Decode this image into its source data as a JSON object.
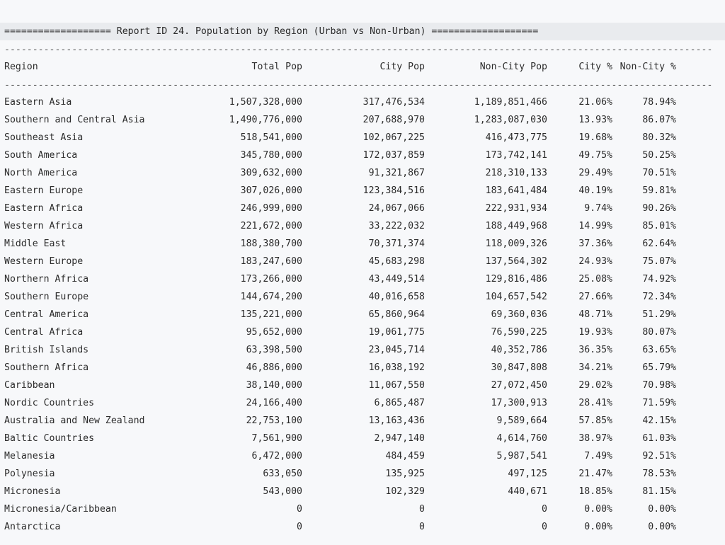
{
  "report": {
    "title_line": "=================== Report ID 24. Population by Region (Urban vs Non-Urban) ===================",
    "separator": "-----------------------------------------------------------------------------------------------------------------------------------"
  },
  "columns": {
    "region": "Region",
    "total": "Total Pop",
    "city": "City Pop",
    "noncity": "Non-City Pop",
    "city_pct": "City %",
    "noncity_pct": "Non-City %"
  },
  "rows": [
    {
      "region": "Eastern Asia",
      "total": "1,507,328,000",
      "city": "317,476,534",
      "noncity": "1,189,851,466",
      "city_pct": "21.06%",
      "noncity_pct": "78.94%"
    },
    {
      "region": "Southern and Central Asia",
      "total": "1,490,776,000",
      "city": "207,688,970",
      "noncity": "1,283,087,030",
      "city_pct": "13.93%",
      "noncity_pct": "86.07%"
    },
    {
      "region": "Southeast Asia",
      "total": "518,541,000",
      "city": "102,067,225",
      "noncity": "416,473,775",
      "city_pct": "19.68%",
      "noncity_pct": "80.32%"
    },
    {
      "region": "South America",
      "total": "345,780,000",
      "city": "172,037,859",
      "noncity": "173,742,141",
      "city_pct": "49.75%",
      "noncity_pct": "50.25%"
    },
    {
      "region": "North America",
      "total": "309,632,000",
      "city": "91,321,867",
      "noncity": "218,310,133",
      "city_pct": "29.49%",
      "noncity_pct": "70.51%"
    },
    {
      "region": "Eastern Europe",
      "total": "307,026,000",
      "city": "123,384,516",
      "noncity": "183,641,484",
      "city_pct": "40.19%",
      "noncity_pct": "59.81%"
    },
    {
      "region": "Eastern Africa",
      "total": "246,999,000",
      "city": "24,067,066",
      "noncity": "222,931,934",
      "city_pct": "9.74%",
      "noncity_pct": "90.26%"
    },
    {
      "region": "Western Africa",
      "total": "221,672,000",
      "city": "33,222,032",
      "noncity": "188,449,968",
      "city_pct": "14.99%",
      "noncity_pct": "85.01%"
    },
    {
      "region": "Middle East",
      "total": "188,380,700",
      "city": "70,371,374",
      "noncity": "118,009,326",
      "city_pct": "37.36%",
      "noncity_pct": "62.64%"
    },
    {
      "region": "Western Europe",
      "total": "183,247,600",
      "city": "45,683,298",
      "noncity": "137,564,302",
      "city_pct": "24.93%",
      "noncity_pct": "75.07%"
    },
    {
      "region": "Northern Africa",
      "total": "173,266,000",
      "city": "43,449,514",
      "noncity": "129,816,486",
      "city_pct": "25.08%",
      "noncity_pct": "74.92%"
    },
    {
      "region": "Southern Europe",
      "total": "144,674,200",
      "city": "40,016,658",
      "noncity": "104,657,542",
      "city_pct": "27.66%",
      "noncity_pct": "72.34%"
    },
    {
      "region": "Central America",
      "total": "135,221,000",
      "city": "65,860,964",
      "noncity": "69,360,036",
      "city_pct": "48.71%",
      "noncity_pct": "51.29%"
    },
    {
      "region": "Central Africa",
      "total": "95,652,000",
      "city": "19,061,775",
      "noncity": "76,590,225",
      "city_pct": "19.93%",
      "noncity_pct": "80.07%"
    },
    {
      "region": "British Islands",
      "total": "63,398,500",
      "city": "23,045,714",
      "noncity": "40,352,786",
      "city_pct": "36.35%",
      "noncity_pct": "63.65%"
    },
    {
      "region": "Southern Africa",
      "total": "46,886,000",
      "city": "16,038,192",
      "noncity": "30,847,808",
      "city_pct": "34.21%",
      "noncity_pct": "65.79%"
    },
    {
      "region": "Caribbean",
      "total": "38,140,000",
      "city": "11,067,550",
      "noncity": "27,072,450",
      "city_pct": "29.02%",
      "noncity_pct": "70.98%"
    },
    {
      "region": "Nordic Countries",
      "total": "24,166,400",
      "city": "6,865,487",
      "noncity": "17,300,913",
      "city_pct": "28.41%",
      "noncity_pct": "71.59%"
    },
    {
      "region": "Australia and New Zealand",
      "total": "22,753,100",
      "city": "13,163,436",
      "noncity": "9,589,664",
      "city_pct": "57.85%",
      "noncity_pct": "42.15%"
    },
    {
      "region": "Baltic Countries",
      "total": "7,561,900",
      "city": "2,947,140",
      "noncity": "4,614,760",
      "city_pct": "38.97%",
      "noncity_pct": "61.03%"
    },
    {
      "region": "Melanesia",
      "total": "6,472,000",
      "city": "484,459",
      "noncity": "5,987,541",
      "city_pct": "7.49%",
      "noncity_pct": "92.51%"
    },
    {
      "region": "Polynesia",
      "total": "633,050",
      "city": "135,925",
      "noncity": "497,125",
      "city_pct": "21.47%",
      "noncity_pct": "78.53%"
    },
    {
      "region": "Micronesia",
      "total": "543,000",
      "city": "102,329",
      "noncity": "440,671",
      "city_pct": "18.85%",
      "noncity_pct": "81.15%"
    },
    {
      "region": "Micronesia/Caribbean",
      "total": "0",
      "city": "0",
      "noncity": "0",
      "city_pct": "0.00%",
      "noncity_pct": "0.00%"
    },
    {
      "region": "Antarctica",
      "total": "0",
      "city": "0",
      "noncity": "0",
      "city_pct": "0.00%",
      "noncity_pct": "0.00%"
    }
  ]
}
